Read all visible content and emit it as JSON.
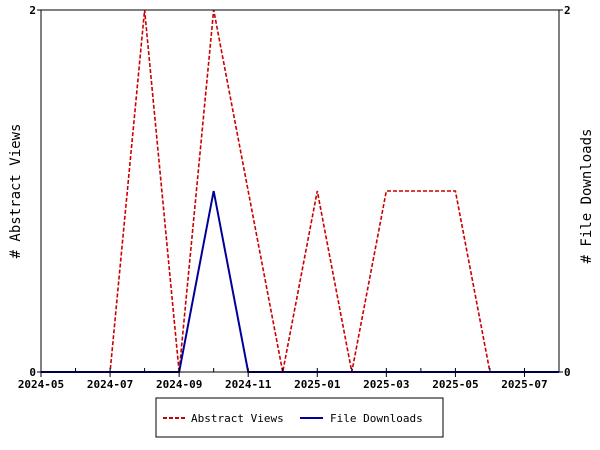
{
  "chart_data": {
    "type": "line",
    "x_ticks": [
      "2024-05",
      "2024-07",
      "2024-09",
      "2024-11",
      "2025-01",
      "2025-03",
      "2025-05",
      "2025-07"
    ],
    "x_range": [
      "2024-05",
      "2025-08"
    ],
    "x": [
      "2024-05",
      "2024-06",
      "2024-07",
      "2024-08",
      "2024-09",
      "2024-10",
      "2024-11",
      "2024-12",
      "2025-01",
      "2025-02",
      "2025-03",
      "2025-04",
      "2025-05",
      "2025-06",
      "2025-07",
      "2025-08"
    ],
    "ylabel_left": "# Abstract Views",
    "ylabel_right": "# File Downloads",
    "ylim_left": [
      0,
      2
    ],
    "ylim_right": [
      0,
      2
    ],
    "y_ticks_left": [
      "0",
      "2"
    ],
    "y_ticks_right": [
      "0",
      "2"
    ],
    "series": [
      {
        "name": "Abstract Views",
        "axis": "left",
        "color": "#cc0000",
        "dashed": true,
        "values": [
          0,
          0,
          0,
          2,
          0,
          2,
          1,
          0,
          1,
          0,
          1,
          1,
          1,
          0,
          0,
          0
        ]
      },
      {
        "name": "File Downloads",
        "axis": "right",
        "color": "#000099",
        "dashed": false,
        "values": [
          0,
          0,
          0,
          0,
          0,
          1,
          0,
          0,
          0,
          0,
          0,
          0,
          0,
          0,
          0,
          0
        ]
      }
    ],
    "grid": false,
    "legend_position": "bottom-center"
  }
}
